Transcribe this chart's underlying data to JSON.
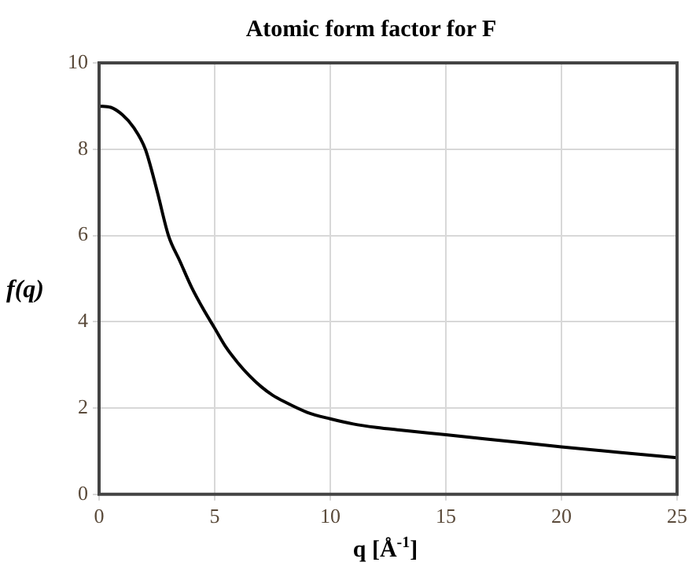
{
  "chart_data": {
    "type": "line",
    "title": "Atomic form factor for F",
    "xlabel": "q [Å$^{-1}$]",
    "ylabel": "f(q)",
    "series": [
      {
        "color": "#000000",
        "x": [
          0,
          0.5,
          1,
          1.5,
          2,
          2.5,
          3,
          3.5,
          4,
          4.5,
          5,
          5.5,
          6,
          6.5,
          7,
          7.5,
          8,
          9,
          10,
          11,
          12,
          13,
          15,
          17.5,
          20,
          22.5,
          25
        ],
        "values": [
          9.0,
          8.97,
          8.8,
          8.5,
          8.0,
          7.05,
          6.0,
          5.4,
          4.8,
          4.3,
          3.85,
          3.4,
          3.05,
          2.75,
          2.5,
          2.3,
          2.15,
          1.9,
          1.75,
          1.63,
          1.55,
          1.49,
          1.38,
          1.24,
          1.1,
          0.97,
          0.85
        ]
      }
    ],
    "xlim": [
      0,
      25
    ],
    "xticks": [
      0,
      5,
      10,
      15,
      20,
      25
    ],
    "ylim": [
      0,
      10
    ],
    "yticks": [
      0,
      2,
      4,
      6,
      8,
      10
    ],
    "grid": true,
    "legend": false,
    "marker": "none",
    "line_style": "solid"
  }
}
